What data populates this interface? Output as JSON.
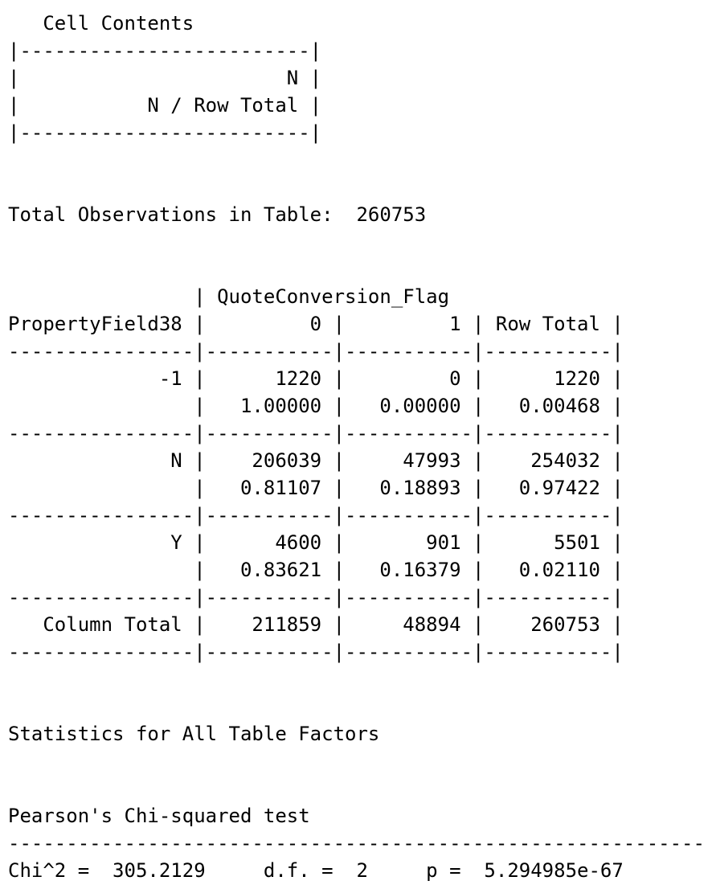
{
  "console": {
    "text_color": "#000000",
    "background_color": "#ffffff",
    "lines": [
      "   Cell Contents",
      "|-------------------------|",
      "|                       N |",
      "|           N / Row Total |",
      "|-------------------------|",
      "Total Observations in Table:  260753",
      "                | QuoteConversion_Flag",
      "PropertyField38 |         0 |         1 | Row Total |",
      "----------------|-----------|-----------|-----------|",
      "             -1 |      1220 |         0 |      1220 |",
      "                |   1.00000 |   0.00000 |   0.00468 |",
      "----------------|-----------|-----------|-----------|",
      "              N |    206039 |     47993 |    254032 |",
      "                |   0.81107 |   0.18893 |   0.97422 |",
      "----------------|-----------|-----------|-----------|",
      "              Y |      4600 |       901 |      5501 |",
      "                |   0.83621 |   0.16379 |   0.02110 |",
      "----------------|-----------|-----------|-----------|",
      "   Column Total |    211859 |     48894 |    260753 |",
      "----------------|-----------|-----------|-----------|",
      "Statistics for All Table Factors",
      "Pearson's Chi-squared test",
      "------------------------------------------------------------",
      "Chi^2 =  305.2129     d.f. =  2     p =  5.294985e-67"
    ]
  }
}
